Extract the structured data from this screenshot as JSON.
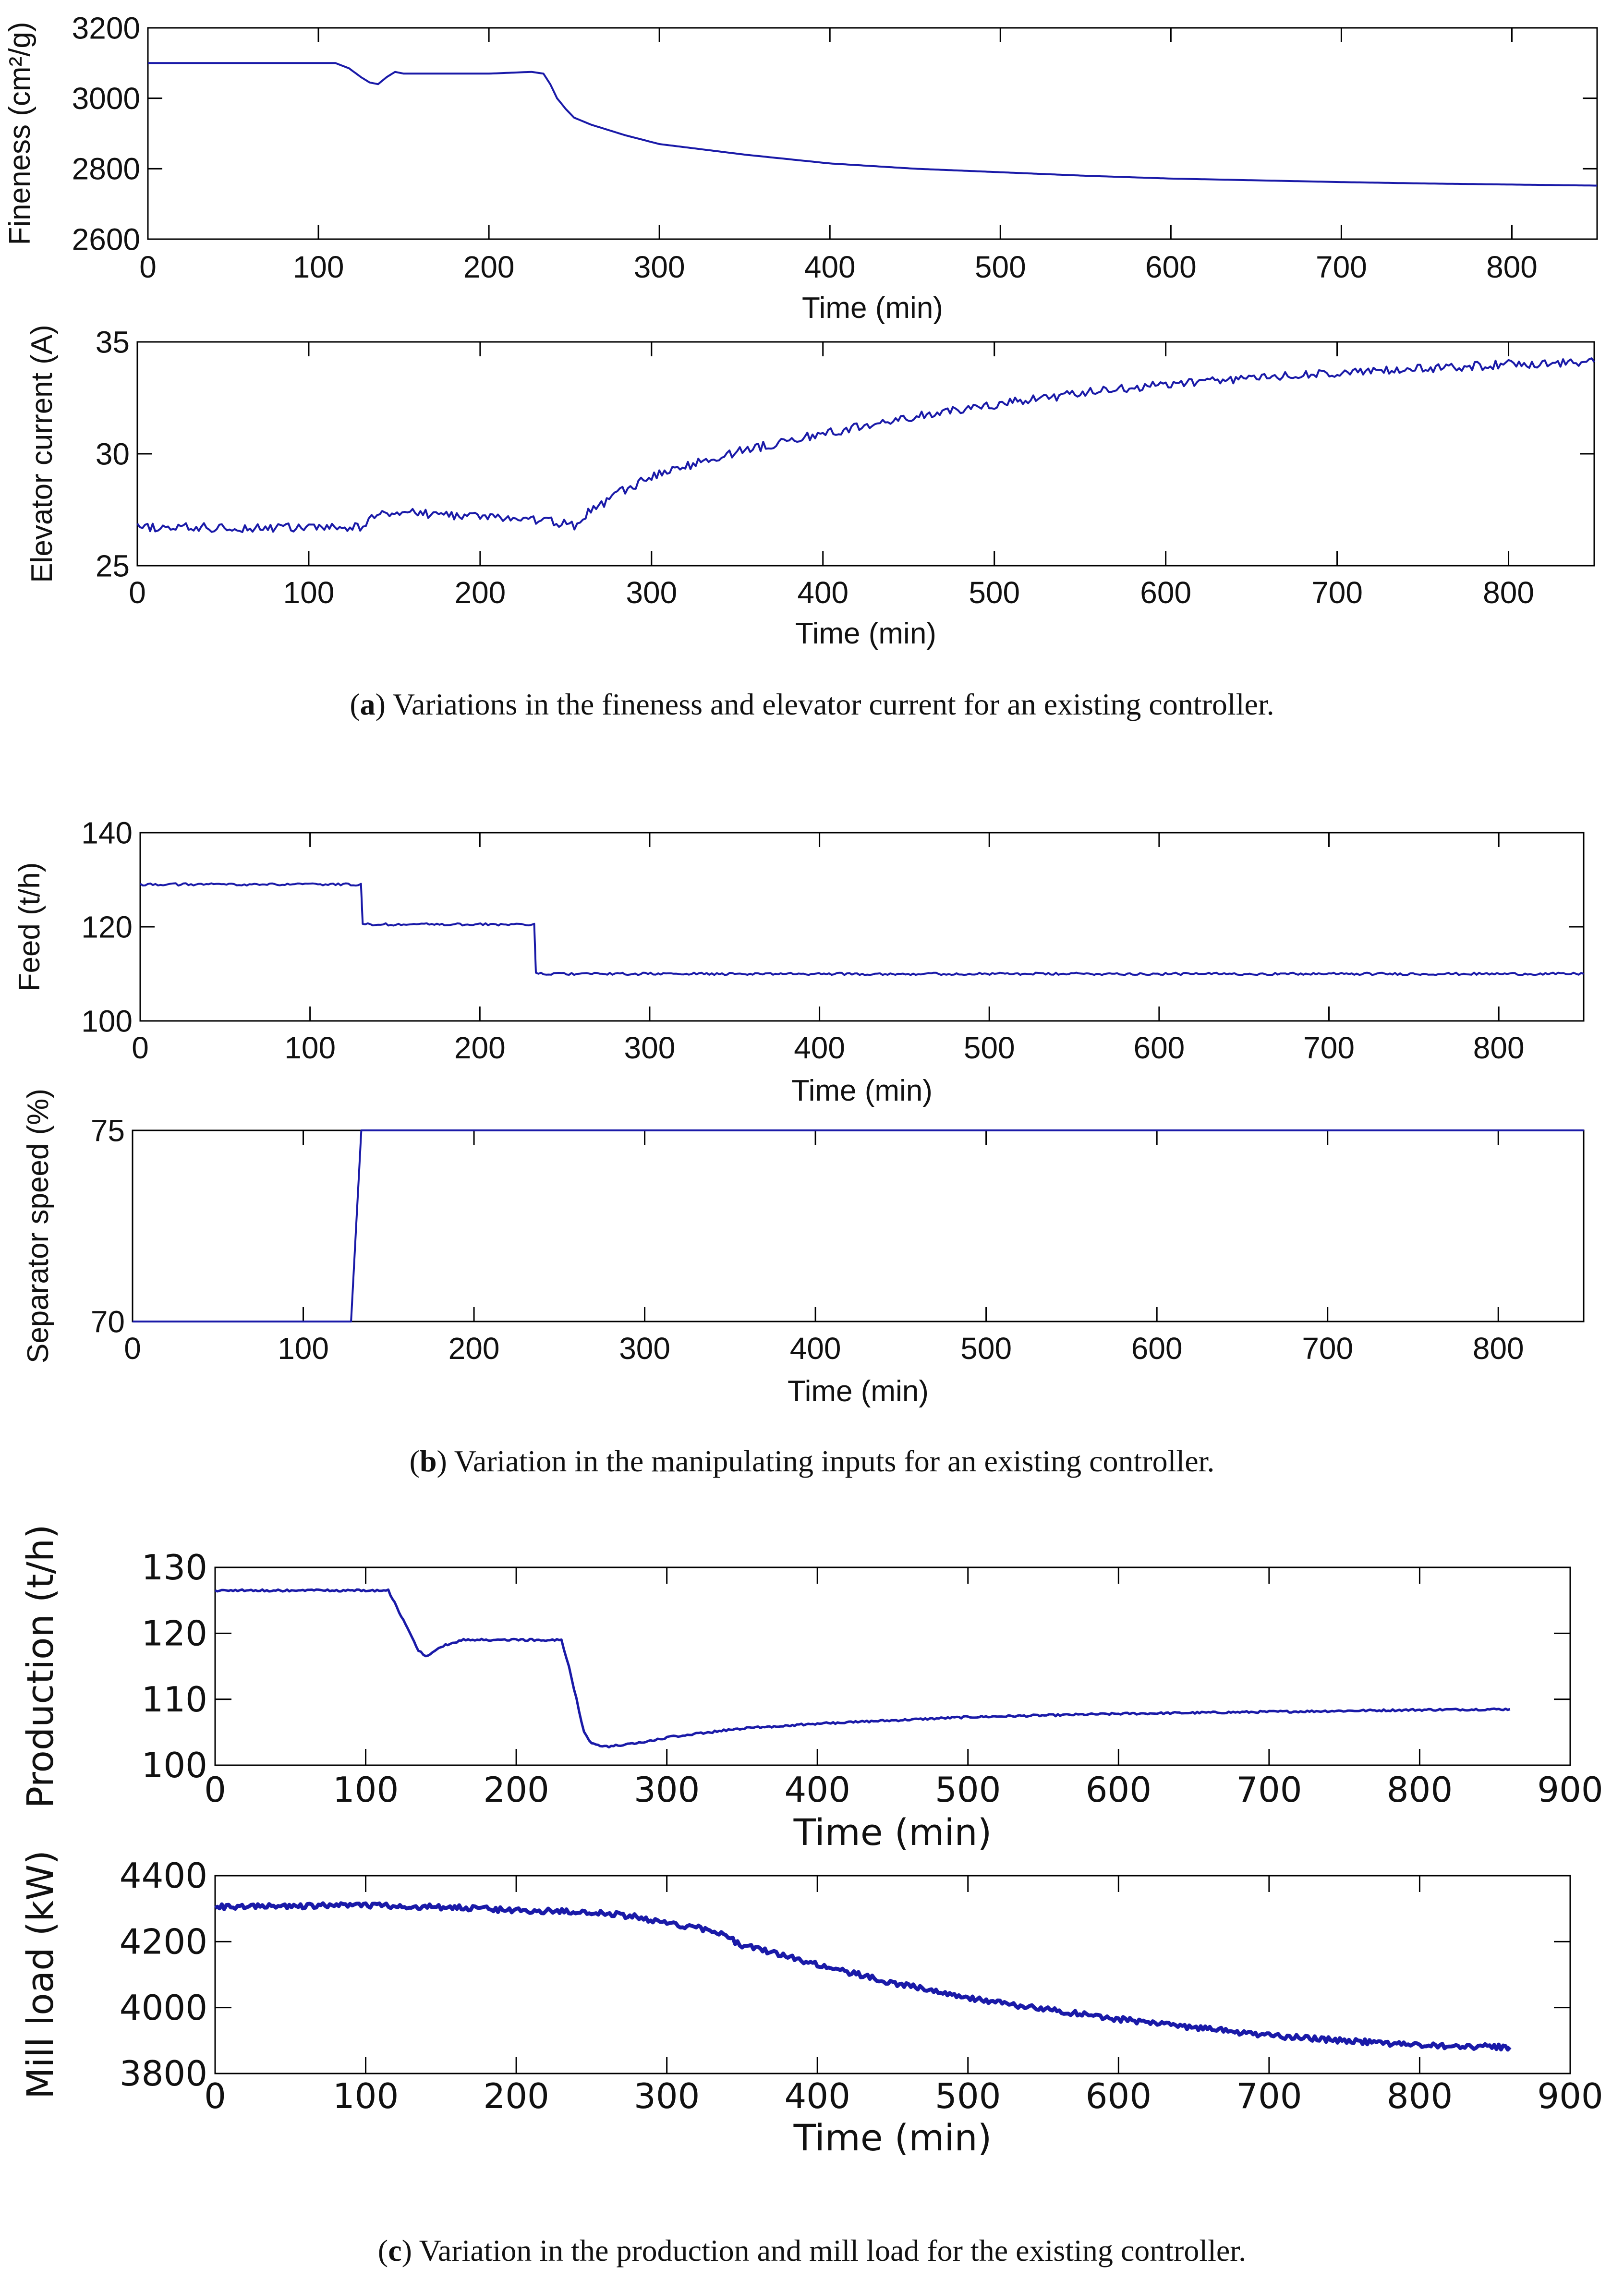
{
  "figure": {
    "captions": {
      "a": {
        "letter": "a",
        "text": ") Variations in the fineness and elevator current for an existing controller."
      },
      "b": {
        "letter": "b",
        "text": ") Variation in the manipulating inputs for an existing controller."
      },
      "c": {
        "letter": "c",
        "text": ") Variation in the production and mill load for the existing controller."
      }
    }
  },
  "colors": {
    "line": "#1a1aa8",
    "axis": "#000000",
    "text": "#111111"
  },
  "chart_data": [
    {
      "id": "fineness",
      "type": "line",
      "panel": "a",
      "xlabel": "Time (min)",
      "ylabel": "Fineness (cm²/g)",
      "xlim": [
        0,
        850
      ],
      "ylim": [
        2600,
        3200
      ],
      "xticks": [
        0,
        100,
        200,
        300,
        400,
        500,
        600,
        700,
        800
      ],
      "yticks": [
        2600,
        2800,
        3000,
        3200
      ],
      "noise": 0,
      "series": [
        {
          "name": "Fineness",
          "x": [
            0,
            110,
            118,
            125,
            130,
            135,
            140,
            145,
            150,
            160,
            175,
            200,
            225,
            232,
            236,
            240,
            245,
            250,
            260,
            280,
            300,
            350,
            400,
            450,
            500,
            550,
            600,
            650,
            700,
            750,
            800,
            850
          ],
          "y": [
            3100,
            3100,
            3085,
            3060,
            3045,
            3040,
            3060,
            3075,
            3070,
            3070,
            3070,
            3070,
            3075,
            3070,
            3040,
            3000,
            2970,
            2945,
            2925,
            2895,
            2870,
            2840,
            2815,
            2800,
            2790,
            2780,
            2772,
            2767,
            2762,
            2758,
            2755,
            2752
          ]
        }
      ]
    },
    {
      "id": "elevator",
      "type": "line",
      "panel": "a",
      "xlabel": "Time (min)",
      "ylabel": "Elevator current (A)",
      "xlim": [
        0,
        850
      ],
      "ylim": [
        25,
        35
      ],
      "xticks": [
        0,
        100,
        200,
        300,
        400,
        500,
        600,
        700,
        800
      ],
      "yticks": [
        25,
        30,
        35
      ],
      "noise": 0.2,
      "series": [
        {
          "name": "Elevator current",
          "x": [
            0,
            130,
            135,
            140,
            150,
            200,
            240,
            255,
            260,
            280,
            300,
            350,
            400,
            450,
            500,
            550,
            600,
            650,
            700,
            750,
            800,
            850
          ],
          "y": [
            26.7,
            26.7,
            27.0,
            27.4,
            27.4,
            27.2,
            27.0,
            26.8,
            27.2,
            28.2,
            29.0,
            30.1,
            30.9,
            31.6,
            32.2,
            32.7,
            33.1,
            33.4,
            33.6,
            33.8,
            34.0,
            34.1
          ]
        }
      ]
    },
    {
      "id": "feed",
      "type": "line",
      "panel": "b",
      "xlabel": "Time (min)",
      "ylabel": "Feed (t/h)",
      "xlim": [
        0,
        850
      ],
      "ylim": [
        100,
        140
      ],
      "xticks": [
        0,
        100,
        200,
        300,
        400,
        500,
        600,
        700,
        800
      ],
      "yticks": [
        100,
        120,
        140
      ],
      "noise": 0.25,
      "series": [
        {
          "name": "Feed",
          "x": [
            0,
            130,
            131,
            232,
            233,
            850
          ],
          "y": [
            129,
            129,
            120.5,
            120.5,
            110,
            110
          ]
        }
      ]
    },
    {
      "id": "separator",
      "type": "line",
      "panel": "b",
      "xlabel": "Time (min)",
      "ylabel": "Separator speed (%)",
      "xlim": [
        0,
        850
      ],
      "ylim": [
        70,
        75
      ],
      "xticks": [
        0,
        100,
        200,
        300,
        400,
        500,
        600,
        700,
        800
      ],
      "yticks": [
        70,
        75
      ],
      "noise": 0,
      "series": [
        {
          "name": "Separator speed",
          "x": [
            0,
            128,
            134,
            850
          ],
          "y": [
            70,
            70,
            75,
            75
          ]
        }
      ]
    },
    {
      "id": "production",
      "type": "line",
      "panel": "c",
      "xlabel": "Time (min)",
      "ylabel": "Production (t/h)",
      "xlim": [
        0,
        900
      ],
      "ylim": [
        100,
        130
      ],
      "xticks": [
        0,
        100,
        200,
        300,
        400,
        500,
        600,
        700,
        800,
        900
      ],
      "yticks": [
        100,
        110,
        120,
        130
      ],
      "noise": 0.15,
      "series": [
        {
          "name": "Production",
          "x": [
            0,
            115,
            125,
            135,
            140,
            150,
            165,
            180,
            200,
            230,
            235,
            240,
            245,
            250,
            260,
            280,
            300,
            350,
            400,
            500,
            600,
            700,
            800,
            860
          ],
          "y": [
            126.5,
            126.5,
            122,
            117.5,
            116.5,
            118,
            119,
            119,
            119,
            119,
            115,
            110,
            105,
            103.2,
            102.8,
            103.3,
            104.2,
            105.6,
            106.3,
            107.3,
            107.8,
            108.1,
            108.4,
            108.5
          ]
        }
      ]
    },
    {
      "id": "millload",
      "type": "line",
      "panel": "c",
      "xlabel": "Time (min)",
      "ylabel": "Mill load (kW)",
      "xlim": [
        0,
        900
      ],
      "ylim": [
        3800,
        4400
      ],
      "xticks": [
        0,
        100,
        200,
        300,
        400,
        500,
        600,
        700,
        800,
        900
      ],
      "yticks": [
        3800,
        4000,
        4200,
        4400
      ],
      "noise": 8,
      "series": [
        {
          "name": "Mill load",
          "x": [
            0,
            100,
            150,
            200,
            250,
            280,
            300,
            330,
            350,
            400,
            450,
            500,
            550,
            600,
            650,
            700,
            750,
            800,
            860
          ],
          "y": [
            4305,
            4310,
            4305,
            4295,
            4290,
            4275,
            4255,
            4235,
            4190,
            4130,
            4075,
            4030,
            3995,
            3965,
            3940,
            3915,
            3900,
            3885,
            3880
          ]
        }
      ]
    }
  ]
}
